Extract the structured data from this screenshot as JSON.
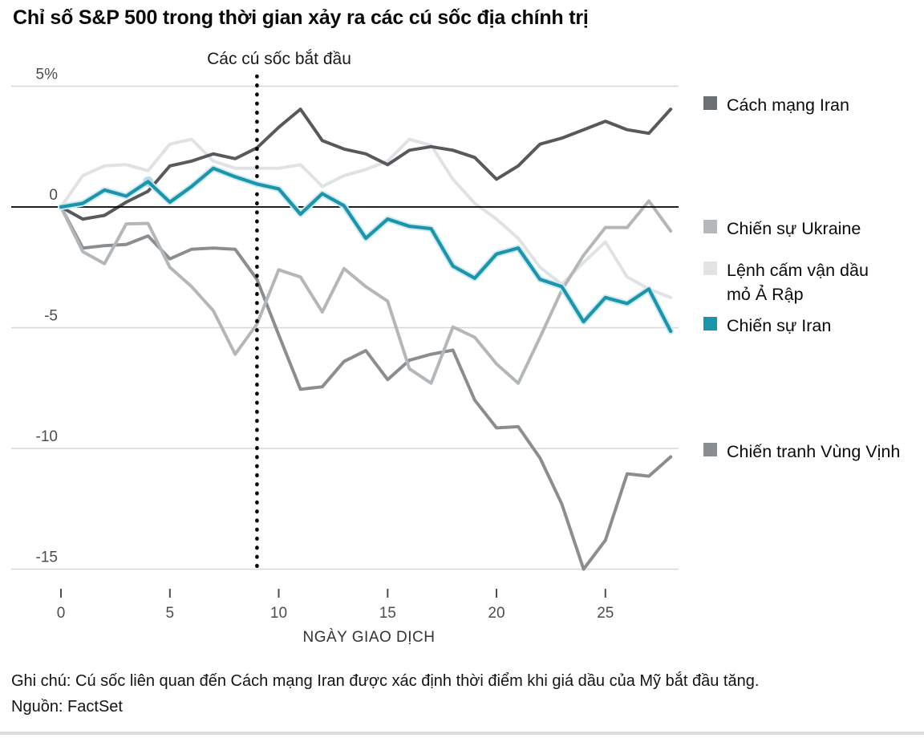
{
  "header": {
    "title": "Chỉ số S&P 500 trong thời gian xảy ra các cú sốc địa chính trị"
  },
  "chart_data": {
    "type": "line",
    "title": "Chỉ số S&P 500 trong thời gian xảy ra các cú sốc địa chính trị",
    "annotation": "Các cú sốc bắt đầu",
    "shock_day": 9,
    "xlabel": "NGÀY GIAO DỊCH",
    "ylabel": "",
    "x_ticks": [
      0,
      5,
      10,
      15,
      20,
      25
    ],
    "x_range": [
      0,
      28
    ],
    "y_range": [
      -15,
      5
    ],
    "grid": true,
    "legend_position": "right",
    "y_ticks": [
      {
        "value": 5,
        "label": "5%"
      },
      {
        "value": 0,
        "label": "0"
      },
      {
        "value": -5,
        "label": "-5"
      },
      {
        "value": -10,
        "label": "-10"
      },
      {
        "value": -15,
        "label": "-15"
      }
    ],
    "x_values": [
      0,
      1,
      2,
      3,
      4,
      5,
      6,
      7,
      8,
      9,
      10,
      11,
      12,
      13,
      14,
      15,
      16,
      17,
      18,
      19,
      20,
      21,
      22,
      23,
      24,
      25,
      26,
      27,
      28
    ],
    "series": [
      {
        "id": "arab-oil-embargo",
        "name": "Lệnh cấm vận dầu mỏ Ả Rập",
        "color": "#e0e2e4",
        "values": [
          0,
          1.3,
          1.7,
          1.75,
          1.5,
          2.6,
          2.8,
          1.9,
          1.6,
          1.6,
          1.6,
          1.75,
          0.85,
          1.3,
          1.55,
          1.9,
          2.8,
          2.55,
          1.15,
          0.15,
          -0.5,
          -1.3,
          -2.5,
          -3.2,
          -2.3,
          -1.45,
          -2.9,
          -3.4,
          -3.75
        ]
      },
      {
        "id": "gulf-war",
        "name": "Chiến tranh Vùng Vịnh",
        "color": "#8b8e91",
        "values": [
          0,
          -1.7,
          -1.6,
          -1.55,
          -1.2,
          -2.15,
          -1.75,
          -1.7,
          -1.75,
          -3.0,
          -5.3,
          -7.55,
          -7.45,
          -6.4,
          -5.95,
          -7.15,
          -6.35,
          -6.1,
          -5.93,
          -8.0,
          -9.15,
          -9.1,
          -10.4,
          -12.3,
          -15.0,
          -13.8,
          -11.05,
          -11.15,
          -10.35
        ]
      },
      {
        "id": "ukraine-war",
        "name": "Chiến sự Ukraine",
        "color": "#b4b7b9",
        "values": [
          0,
          -1.85,
          -2.35,
          -0.7,
          -0.68,
          -2.5,
          -3.3,
          -4.3,
          -6.1,
          -4.85,
          -2.6,
          -2.9,
          -4.35,
          -2.55,
          -3.3,
          -3.9,
          -6.7,
          -7.3,
          -4.97,
          -5.4,
          -6.5,
          -7.3,
          -5.4,
          -3.45,
          -2.0,
          -0.85,
          -0.85,
          0.25,
          -1.0
        ]
      },
      {
        "id": "iran-revolution",
        "name": "Cách mạng Iran",
        "color": "#57595c",
        "values": [
          0,
          -0.5,
          -0.35,
          0.2,
          0.65,
          1.7,
          1.9,
          2.2,
          2.0,
          2.45,
          3.3,
          4.05,
          2.75,
          2.4,
          2.2,
          1.75,
          2.35,
          2.5,
          2.35,
          2.05,
          1.15,
          1.7,
          2.6,
          2.85,
          3.2,
          3.55,
          3.2,
          3.05,
          4.05
        ]
      },
      {
        "id": "iran-war",
        "name": "Chiến sự Iran",
        "color": "#1b95ab",
        "halo": "#cfe9ef",
        "values": [
          0,
          0.15,
          0.7,
          0.45,
          1.05,
          0.2,
          0.85,
          1.6,
          1.25,
          0.95,
          0.75,
          -0.3,
          0.55,
          0.05,
          -1.3,
          -0.5,
          -0.8,
          -0.9,
          -2.45,
          -2.95,
          -1.95,
          -1.7,
          -3.0,
          -3.3,
          -4.75,
          -3.75,
          -4.0,
          -3.4,
          -5.15
        ]
      }
    ],
    "marker": {
      "series": "iran-war",
      "day": 4,
      "value": 1.05,
      "color": "#b9dde7"
    }
  },
  "legend": {
    "items": [
      {
        "id": "iran-revolution",
        "label": "Cách mạng Iran",
        "color": "#6d7073"
      },
      {
        "id": "ukraine-war",
        "label": "Chiến sự Ukraine",
        "color": "#b5b8ba"
      },
      {
        "id": "arab-oil-embargo",
        "label": "Lệnh cấm vận dầu mỏ Ả Rập",
        "color": "#e1e3e5"
      },
      {
        "id": "iran-war",
        "label": "Chiến sự Iran",
        "color": "#1b95ab"
      },
      {
        "id": "gulf-war",
        "label": "Chiến tranh Vùng Vịnh",
        "color": "#8a8d90"
      }
    ]
  },
  "footer": {
    "note": "Ghi chú: Cú sốc liên quan đến Cách mạng Iran được xác định thời điểm khi giá dầu của Mỹ bắt đầu tăng.",
    "source": "Nguồn: FactSet"
  }
}
